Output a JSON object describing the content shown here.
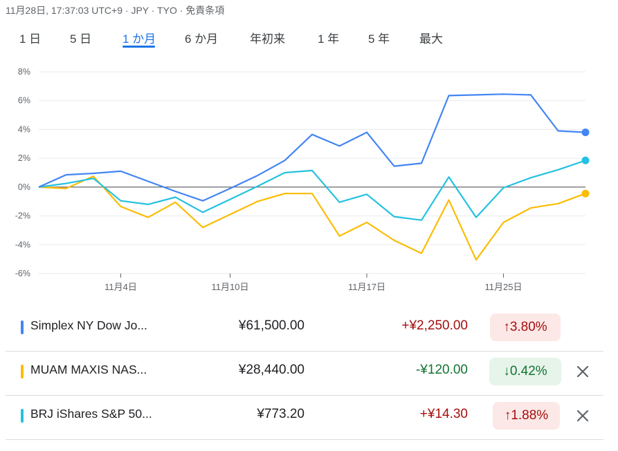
{
  "header": {
    "timestamp": "11月28日, 17:37:03 UTC+9 · JPY · TYO · 免責条項"
  },
  "tabs": [
    {
      "label": "1 日",
      "active": false
    },
    {
      "label": "5 日",
      "active": false
    },
    {
      "label": "1 か月",
      "active": true
    },
    {
      "label": "6 か月",
      "active": false
    },
    {
      "label": "年初来",
      "active": false
    },
    {
      "label": "1 年",
      "active": false
    },
    {
      "label": "5 年",
      "active": false
    },
    {
      "label": "最大",
      "active": false
    }
  ],
  "chart_data": {
    "type": "line",
    "y_unit": "%",
    "ylim": [
      -6,
      8
    ],
    "yticks": [
      8,
      6,
      4,
      2,
      0,
      -2,
      -4,
      -6
    ],
    "ytick_labels": [
      "8%",
      "6%",
      "4%",
      "2%",
      "0%",
      "-2%",
      "-4%",
      "-6%"
    ],
    "x_ticks": [
      {
        "label": "11月4日",
        "index": 3
      },
      {
        "label": "11月10日",
        "index": 7
      },
      {
        "label": "11月17日",
        "index": 12
      },
      {
        "label": "11月25日",
        "index": 17
      }
    ],
    "n_points": 21,
    "zero_line": true,
    "series": [
      {
        "name": "Simplex NY Dow Jo...",
        "color": "#4285f4",
        "values": [
          0,
          0.85,
          0.95,
          1.1,
          0.4,
          -0.3,
          -0.95,
          -0.1,
          0.8,
          1.85,
          3.65,
          2.85,
          3.8,
          1.45,
          1.65,
          6.35,
          6.4,
          6.45,
          6.4,
          3.9,
          3.8
        ]
      },
      {
        "name": "MUAM MAXIS NAS...",
        "color": "#fbbc04",
        "values": [
          0,
          -0.1,
          0.75,
          -1.35,
          -2.1,
          -1.05,
          -2.8,
          -1.9,
          -1.0,
          -0.45,
          -0.45,
          -3.4,
          -2.45,
          -3.7,
          -4.6,
          -0.9,
          -5.05,
          -2.45,
          -1.45,
          -1.15,
          -0.45
        ]
      },
      {
        "name": "BRJ iShares S&P 50...",
        "color": "#24c1e0",
        "values": [
          0,
          0.25,
          0.6,
          -0.95,
          -1.2,
          -0.7,
          -1.75,
          -0.85,
          0.05,
          1.0,
          1.15,
          -1.05,
          -0.5,
          -2.05,
          -2.3,
          0.7,
          -2.1,
          -0.05,
          0.65,
          1.2,
          1.85
        ]
      }
    ]
  },
  "holdings": [
    {
      "name": "Simplex NY Dow Jo...",
      "color": "#4285f4",
      "price": "¥61,500.00",
      "change": "+¥2,250.00",
      "direction": "up",
      "percent": "3.80%",
      "arrow": "↑",
      "removable": false
    },
    {
      "name": "MUAM MAXIS NAS...",
      "color": "#fbbc04",
      "price": "¥28,440.00",
      "change": "-¥120.00",
      "direction": "down",
      "percent": "0.42%",
      "arrow": "↓",
      "removable": true
    },
    {
      "name": "BRJ iShares S&P 50...",
      "color": "#24c1e0",
      "price": "¥773.20",
      "change": "+¥14.30",
      "direction": "up",
      "percent": "1.88%",
      "arrow": "↑",
      "removable": true
    }
  ],
  "icons": {
    "close": "close-icon"
  },
  "colors": {
    "active_tab": "#1a73e8",
    "up_text": "#a50e0e",
    "up_bg": "#fce8e6",
    "down_text": "#137333",
    "down_bg": "#e6f4ea"
  }
}
